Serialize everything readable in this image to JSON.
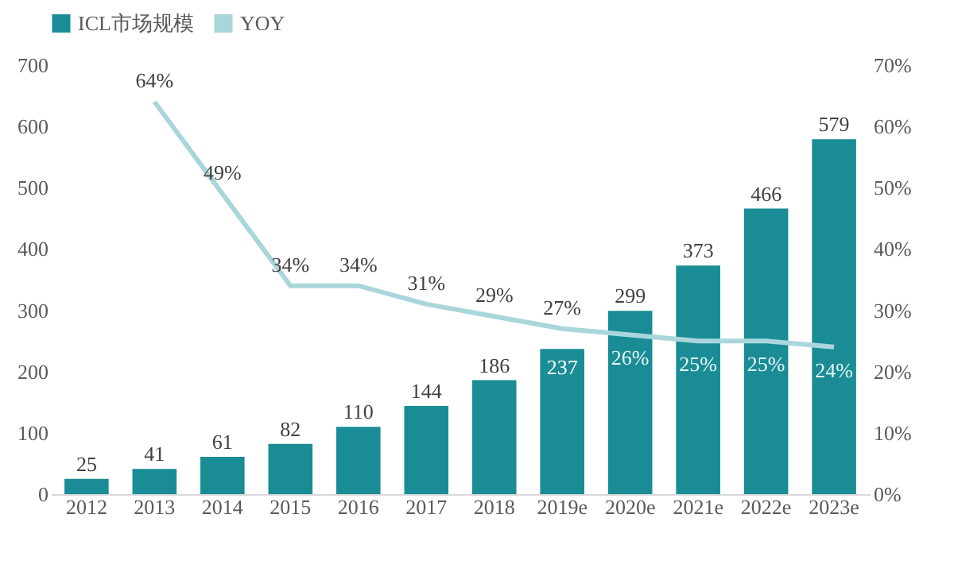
{
  "chart_data": {
    "type": "bar",
    "categories": [
      "2012",
      "2013",
      "2014",
      "2015",
      "2016",
      "2017",
      "2018",
      "2019e",
      "2020e",
      "2021e",
      "2022e",
      "2023e"
    ],
    "series": [
      {
        "name": "ICL市场规模",
        "type": "bar",
        "color": "#1a8c96",
        "values": [
          25,
          41,
          61,
          82,
          110,
          144,
          186,
          237,
          299,
          373,
          466,
          579
        ],
        "value_labels": [
          "25",
          "41",
          "61",
          "82",
          "110",
          "144",
          "186",
          "237",
          "299",
          "373",
          "466",
          "579"
        ]
      },
      {
        "name": "YOY",
        "type": "line",
        "axis": "y2",
        "color": "#a9d6da",
        "values": [
          null,
          64,
          49,
          34,
          34,
          31,
          29,
          27,
          26,
          25,
          25,
          24
        ],
        "value_labels": [
          null,
          "64%",
          "49%",
          "34%",
          "34%",
          "31%",
          "29%",
          "27%",
          "26%",
          "25%",
          "25%",
          "24%"
        ]
      }
    ],
    "ylim": [
      0,
      700
    ],
    "yticks": [
      0,
      100,
      200,
      300,
      400,
      500,
      600,
      700
    ],
    "y2lim": [
      0,
      70
    ],
    "y2ticks": [
      {
        "value": 0,
        "label": "0%"
      },
      {
        "value": 10,
        "label": "10%"
      },
      {
        "value": 20,
        "label": "20%"
      },
      {
        "value": 30,
        "label": "30%"
      },
      {
        "value": 40,
        "label": "40%"
      },
      {
        "value": 50,
        "label": "50%"
      },
      {
        "value": 60,
        "label": "60%"
      },
      {
        "value": 70,
        "label": "70%"
      }
    ],
    "legend": "top",
    "grid": false,
    "marker": "none",
    "line_style": "solid"
  }
}
